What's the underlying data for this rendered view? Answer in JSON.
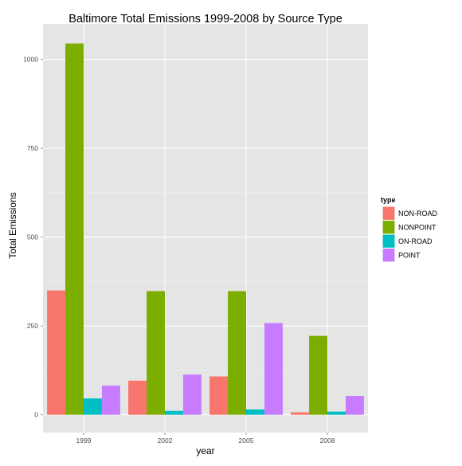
{
  "chart_data": {
    "type": "bar",
    "title": "Baltimore Total Emissions 1999-2008 by Source Type",
    "xlabel": "year",
    "ylabel": "Total Emissions",
    "categories": [
      "1999",
      "2002",
      "2005",
      "2008"
    ],
    "series": [
      {
        "name": "NON-ROAD",
        "color": "#F8766D",
        "values": [
          350,
          96,
          108,
          7
        ]
      },
      {
        "name": "NONPOINT",
        "color": "#7CAE00",
        "values": [
          1045,
          348,
          348,
          222
        ]
      },
      {
        "name": "ON-ROAD",
        "color": "#00BFC4",
        "values": [
          46,
          11,
          15,
          9
        ]
      },
      {
        "name": "POINT",
        "color": "#C77CFF",
        "values": [
          82,
          113,
          258,
          53
        ]
      }
    ],
    "yticks": [
      0,
      250,
      500,
      750,
      1000
    ],
    "ylim": [
      -50,
      1100
    ],
    "grid": true,
    "legend": {
      "title": "type",
      "placement": "right"
    },
    "panel_background": "#E5E5E5",
    "grid_color": "#FFFFFF"
  }
}
